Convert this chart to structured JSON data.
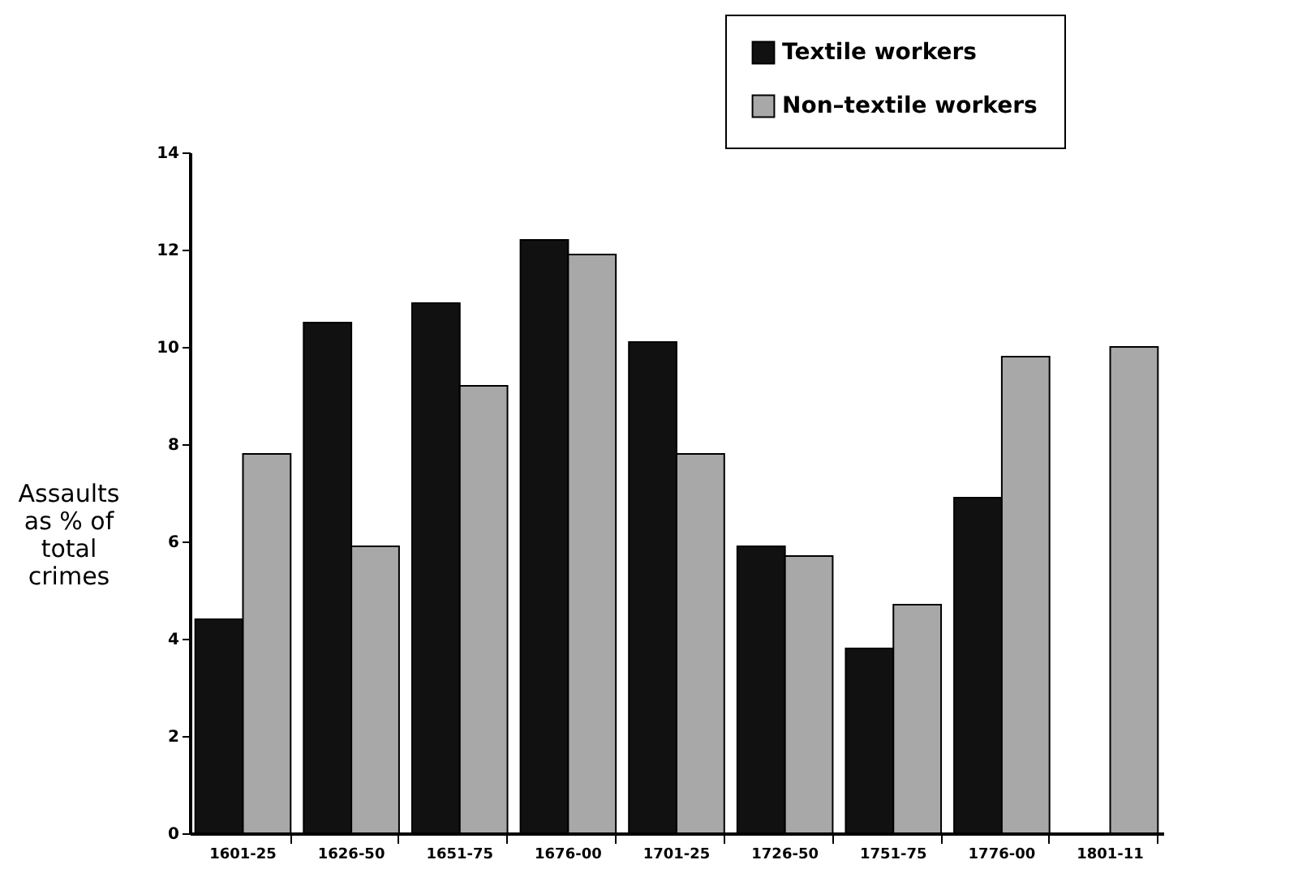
{
  "chart_data": {
    "type": "bar",
    "ylabel": "Assaults as % of total crimes",
    "categories": [
      "1601-25",
      "1626-50",
      "1651-75",
      "1676-00",
      "1701-25",
      "1726-50",
      "1751-75",
      "1776-00",
      "1801-11"
    ],
    "series": [
      {
        "name": "Textile workers",
        "color": "#111111",
        "values": [
          4.4,
          10.5,
          10.9,
          12.2,
          10.1,
          5.9,
          3.8,
          6.9,
          null
        ]
      },
      {
        "name": "Non–textile workers",
        "color": "#a8a8a8",
        "values": [
          7.8,
          5.9,
          9.2,
          11.9,
          7.8,
          5.7,
          4.7,
          9.8,
          10.0
        ]
      }
    ],
    "ylim": [
      0,
      14
    ],
    "yticks": [
      0,
      2,
      4,
      6,
      8,
      10,
      12,
      14
    ],
    "grid": false,
    "legend": "top right"
  }
}
